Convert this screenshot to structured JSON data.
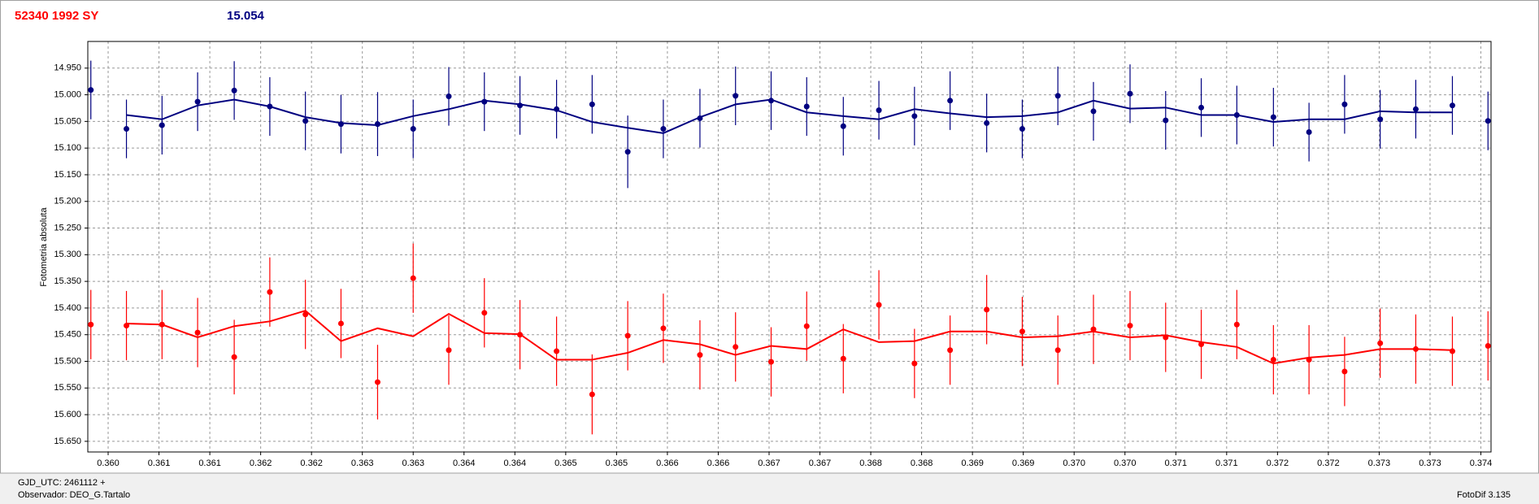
{
  "chart_data": {
    "type": "scatter",
    "title": "52340 1992 SY",
    "subtitle": "15.054",
    "y_label": "Fotometria absoluta",
    "footer": {
      "gjd": "GJD_UTC: 2461112 +",
      "observer": "Observador: DEO_G.Tartalo",
      "software": "FotoDif 3.135"
    },
    "x": [
      0.35983,
      0.36018,
      0.36053,
      0.36088,
      0.36124,
      0.36159,
      0.36194,
      0.36229,
      0.36265,
      0.363,
      0.36335,
      0.3637,
      0.36405,
      0.36441,
      0.36476,
      0.36511,
      0.36546,
      0.36582,
      0.36617,
      0.36652,
      0.36687,
      0.36723,
      0.36758,
      0.36793,
      0.36828,
      0.36864,
      0.36899,
      0.36934,
      0.36969,
      0.37005,
      0.3704,
      0.37075,
      0.3711,
      0.37146,
      0.37181,
      0.37216,
      0.37251,
      0.37286,
      0.37322,
      0.37357
    ],
    "series": [
      {
        "color": "#000080",
        "values": [
          14.991,
          15.064,
          15.057,
          15.013,
          14.992,
          15.022,
          15.049,
          15.055,
          15.055,
          15.064,
          15.003,
          15.013,
          15.02,
          15.027,
          15.018,
          15.107,
          15.064,
          15.044,
          15.002,
          15.011,
          15.022,
          15.059,
          15.029,
          15.04,
          15.011,
          15.053,
          15.064,
          15.002,
          15.031,
          14.998,
          15.048,
          15.024,
          15.038,
          15.042,
          15.07,
          15.018,
          15.046,
          15.027,
          15.02,
          15.049
        ],
        "errors": [
          0.055,
          0.055,
          0.055,
          0.055,
          0.055,
          0.055,
          0.055,
          0.055,
          0.06,
          0.055,
          0.055,
          0.055,
          0.055,
          0.055,
          0.055,
          0.068,
          0.055,
          0.055,
          0.055,
          0.055,
          0.055,
          0.055,
          0.055,
          0.055,
          0.055,
          0.055,
          0.055,
          0.055,
          0.055,
          0.055,
          0.055,
          0.055,
          0.055,
          0.055,
          0.055,
          0.055,
          0.055,
          0.055,
          0.055,
          0.055
        ],
        "fit": [
          null,
          15.038,
          15.046,
          15.02,
          15.009,
          15.022,
          15.042,
          15.053,
          15.057,
          15.04,
          15.027,
          15.011,
          15.018,
          15.029,
          15.051,
          15.062,
          15.072,
          15.042,
          15.018,
          15.009,
          15.033,
          15.04,
          15.046,
          15.027,
          15.035,
          15.042,
          15.04,
          15.033,
          15.011,
          15.026,
          15.024,
          15.038,
          15.038,
          15.051,
          15.046,
          15.046,
          15.031,
          15.033,
          15.033,
          null
        ]
      },
      {
        "color": "#ff0000",
        "values": [
          15.431,
          15.433,
          15.431,
          15.446,
          15.492,
          15.37,
          15.412,
          15.429,
          15.539,
          15.344,
          15.479,
          15.409,
          15.45,
          15.481,
          15.562,
          15.452,
          15.438,
          15.488,
          15.473,
          15.501,
          15.434,
          15.495,
          15.394,
          15.504,
          15.479,
          15.403,
          15.444,
          15.479,
          15.44,
          15.433,
          15.455,
          15.468,
          15.431,
          15.497,
          15.497,
          15.519,
          15.466,
          15.477,
          15.481,
          15.471
        ],
        "errors": [
          0.065,
          0.065,
          0.065,
          0.065,
          0.07,
          0.065,
          0.065,
          0.065,
          0.07,
          0.065,
          0.065,
          0.065,
          0.065,
          0.065,
          0.075,
          0.065,
          0.065,
          0.065,
          0.065,
          0.065,
          0.065,
          0.065,
          0.065,
          0.065,
          0.065,
          0.065,
          0.065,
          0.065,
          0.065,
          0.065,
          0.065,
          0.065,
          0.065,
          0.065,
          0.065,
          0.065,
          0.065,
          0.065,
          0.065,
          0.065
        ],
        "fit": [
          null,
          15.429,
          15.431,
          15.455,
          15.434,
          15.425,
          15.405,
          15.462,
          15.438,
          15.453,
          15.411,
          15.447,
          15.449,
          15.497,
          15.497,
          15.484,
          15.46,
          15.468,
          15.488,
          15.471,
          15.477,
          15.44,
          15.464,
          15.462,
          15.444,
          15.444,
          15.455,
          15.453,
          15.444,
          15.455,
          15.451,
          15.464,
          15.473,
          15.504,
          15.493,
          15.488,
          15.477,
          15.477,
          15.479,
          null
        ]
      }
    ],
    "xlim": [
      0.3598,
      0.3736
    ],
    "ylim": [
      14.9,
      15.67
    ],
    "y_reversed": true,
    "grid": true,
    "xticks": [
      {
        "value": 0.36,
        "label": "0.360"
      },
      {
        "value": 0.3605,
        "label": "0.361"
      },
      {
        "value": 0.361,
        "label": "0.361"
      },
      {
        "value": 0.3615,
        "label": "0.362"
      },
      {
        "value": 0.362,
        "label": "0.362"
      },
      {
        "value": 0.3625,
        "label": "0.363"
      },
      {
        "value": 0.363,
        "label": "0.363"
      },
      {
        "value": 0.3635,
        "label": "0.364"
      },
      {
        "value": 0.364,
        "label": "0.364"
      },
      {
        "value": 0.3645,
        "label": "0.365"
      },
      {
        "value": 0.365,
        "label": "0.365"
      },
      {
        "value": 0.3655,
        "label": "0.366"
      },
      {
        "value": 0.366,
        "label": "0.366"
      },
      {
        "value": 0.3665,
        "label": "0.367"
      },
      {
        "value": 0.367,
        "label": "0.367"
      },
      {
        "value": 0.3675,
        "label": "0.368"
      },
      {
        "value": 0.368,
        "label": "0.368"
      },
      {
        "value": 0.3685,
        "label": "0.369"
      },
      {
        "value": 0.369,
        "label": "0.369"
      },
      {
        "value": 0.3695,
        "label": "0.370"
      },
      {
        "value": 0.37,
        "label": "0.370"
      },
      {
        "value": 0.3705,
        "label": "0.371"
      },
      {
        "value": 0.371,
        "label": "0.371"
      },
      {
        "value": 0.3715,
        "label": "0.372"
      },
      {
        "value": 0.372,
        "label": "0.372"
      },
      {
        "value": 0.3725,
        "label": "0.373"
      },
      {
        "value": 0.373,
        "label": "0.373"
      },
      {
        "value": 0.3735,
        "label": "0.374"
      }
    ],
    "yticks": [
      {
        "value": 14.95,
        "label": "14.950"
      },
      {
        "value": 15.0,
        "label": "15.000"
      },
      {
        "value": 15.05,
        "label": "15.050"
      },
      {
        "value": 15.1,
        "label": "15.100"
      },
      {
        "value": 15.15,
        "label": "15.150"
      },
      {
        "value": 15.2,
        "label": "15.200"
      },
      {
        "value": 15.25,
        "label": "15.250"
      },
      {
        "value": 15.3,
        "label": "15.300"
      },
      {
        "value": 15.35,
        "label": "15.350"
      },
      {
        "value": 15.4,
        "label": "15.400"
      },
      {
        "value": 15.45,
        "label": "15.450"
      },
      {
        "value": 15.5,
        "label": "15.500"
      },
      {
        "value": 15.55,
        "label": "15.550"
      },
      {
        "value": 15.6,
        "label": "15.600"
      },
      {
        "value": 15.65,
        "label": "15.650"
      }
    ]
  }
}
